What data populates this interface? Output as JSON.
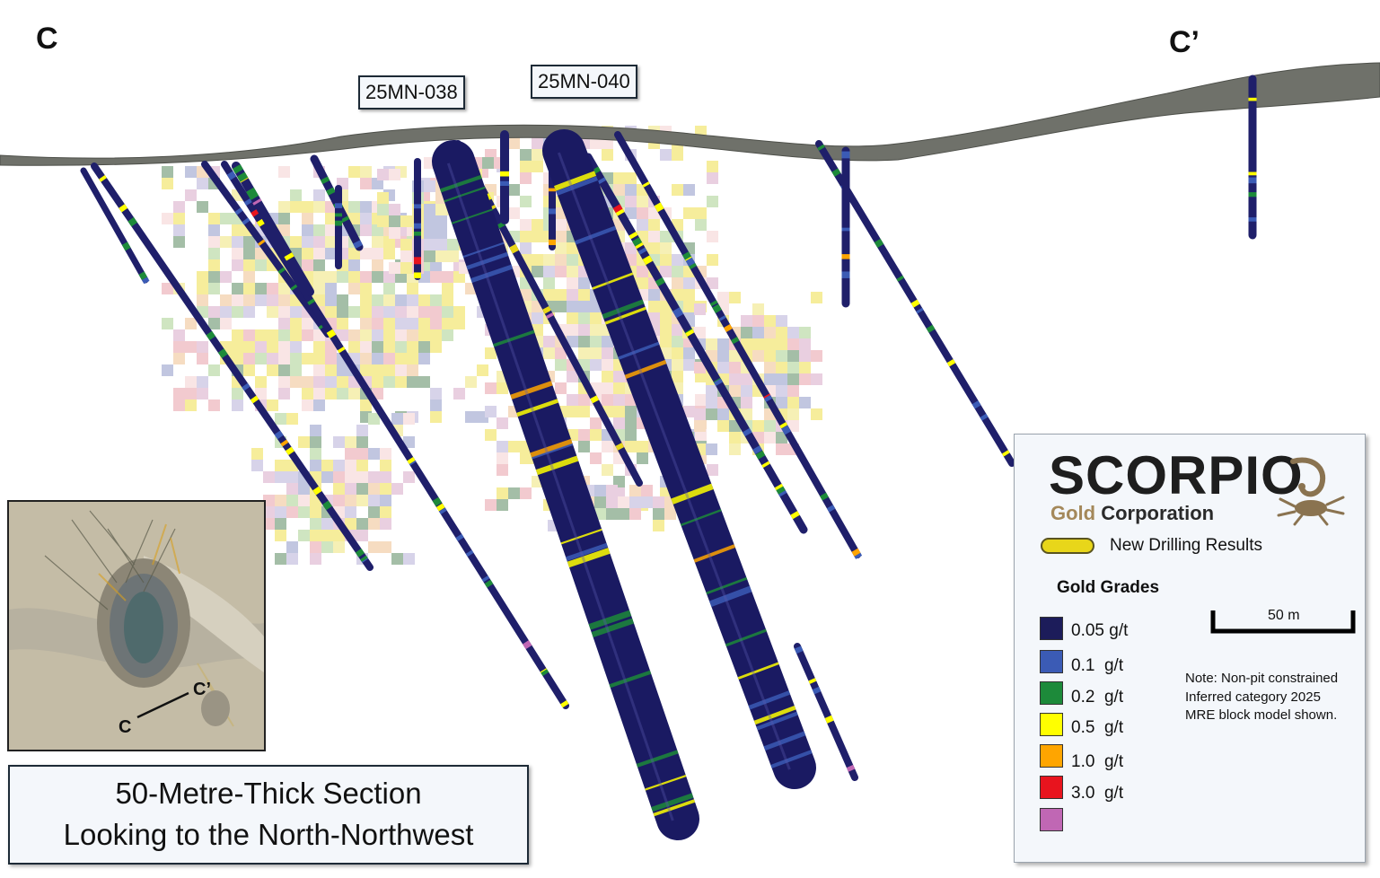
{
  "section_ends": {
    "start": "C",
    "end": "C’"
  },
  "hole_labels": [
    "25MN-038",
    "25MN-040"
  ],
  "section_title": {
    "line1": "50-Metre-Thick Section",
    "line2": "Looking to the North-Northwest"
  },
  "inset_map": {
    "label_start": "C",
    "label_end": "C’"
  },
  "legend": {
    "logo_name": "SCORPIO",
    "logo_gold": "Gold",
    "logo_corporation": "Corporation",
    "new_drilling": "New Drilling Results",
    "grades_title": "Gold Grades",
    "grades": [
      {
        "label": "0.05 g/t",
        "color": "#1c1c5a"
      },
      {
        "label": "0.1  g/t",
        "color": "#3b5bb5"
      },
      {
        "label": "0.2  g/t",
        "color": "#1d8a3a"
      },
      {
        "label": "0.5  g/t",
        "color": "#ffff00"
      },
      {
        "label": "1.0  g/t",
        "color": "#ffa500"
      },
      {
        "label": "3.0  g/t",
        "color": "#e8141e"
      },
      {
        "label": "",
        "color": "#c067b4"
      }
    ],
    "scale": "50 m",
    "note": "Note: Non-pit constrained Inferred category 2025 MRE block model shown."
  },
  "colors": {
    "hole_base": "#1f1f6a",
    "surface": "#6f716a",
    "new_drill": "#e8d61a"
  }
}
